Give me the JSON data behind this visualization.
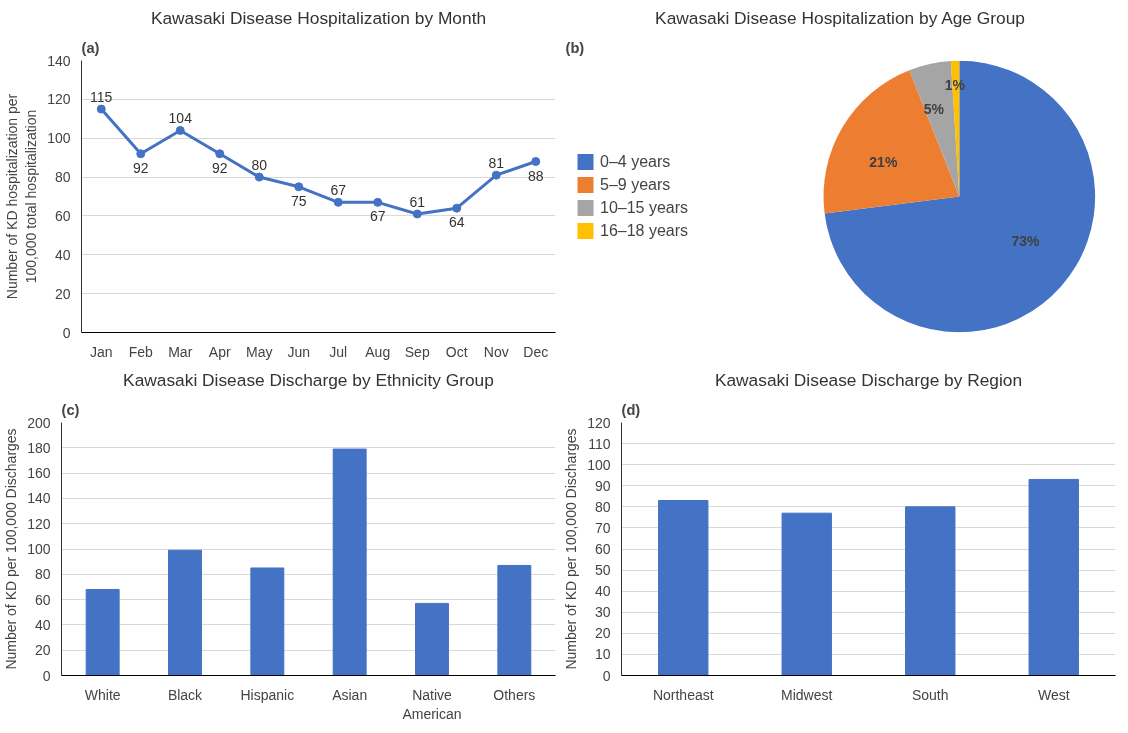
{
  "chart_data": [
    {
      "type": "line",
      "title": "Kawasaki Disease Hospitalization by Month",
      "ylabel": "Number of KD hospitalization per 100,000 total hospitalization",
      "annotations": [
        "(a)"
      ],
      "categories": [
        "Jan",
        "Feb",
        "Mar",
        "Apr",
        "May",
        "Jun",
        "Jul",
        "Aug",
        "Sep",
        "Oct",
        "Nov",
        "Dec"
      ],
      "series": [
        {
          "color": "#4472c4",
          "values": [
            115,
            92,
            104,
            92,
            80,
            75,
            67,
            67,
            61,
            64,
            81,
            88
          ]
        }
      ],
      "ylim": [
        0,
        140
      ],
      "yticks": [
        0,
        20,
        40,
        60,
        80,
        100,
        120,
        140
      ],
      "grid": "y",
      "marker": "circle",
      "data_labels": true,
      "legend": false
    },
    {
      "type": "pie",
      "title": "Kawasaki Disease Hospitalization by Age Group",
      "annotations": [
        "(b)"
      ],
      "categories": [
        "0–4 years",
        "5–9 years",
        "10–15 years",
        "16–18 years"
      ],
      "values": [
        73,
        21,
        5,
        1
      ],
      "colors": [
        "#4472c4",
        "#ed7d31",
        "#a5a5a5",
        "#ffc000"
      ],
      "value_labels": [
        "73%",
        "21%",
        "5%",
        "1%"
      ],
      "legend": "left"
    },
    {
      "type": "bar",
      "title": "Kawasaki Disease Discharge by Ethnicity Group",
      "ylabel": "Number of KD per 100,000 Discharges",
      "annotations": [
        "(c)"
      ],
      "categories": [
        "White",
        "Black",
        "Hispanic",
        "Asian",
        "Native American",
        "Others"
      ],
      "series": [
        {
          "color": "#4472c4",
          "values": [
            68,
            99,
            85,
            179,
            57,
            87
          ]
        }
      ],
      "ylim": [
        0,
        200
      ],
      "yticks": [
        0,
        20,
        40,
        60,
        80,
        100,
        120,
        140,
        160,
        180,
        200
      ],
      "grid": "y",
      "legend": false
    },
    {
      "type": "bar",
      "title": "Kawasaki Disease Discharge by Region",
      "ylabel": "Number of KD per 100,000 Discharges",
      "annotations": [
        "(d)"
      ],
      "categories": [
        "Northeast",
        "Midwest",
        "South",
        "West"
      ],
      "series": [
        {
          "color": "#4472c4",
          "values": [
            83,
            77,
            80,
            93
          ]
        }
      ],
      "ylim": [
        0,
        120
      ],
      "yticks": [
        0,
        10,
        20,
        30,
        40,
        50,
        60,
        70,
        80,
        90,
        100,
        110,
        120
      ],
      "grid": "y",
      "legend": false
    }
  ]
}
